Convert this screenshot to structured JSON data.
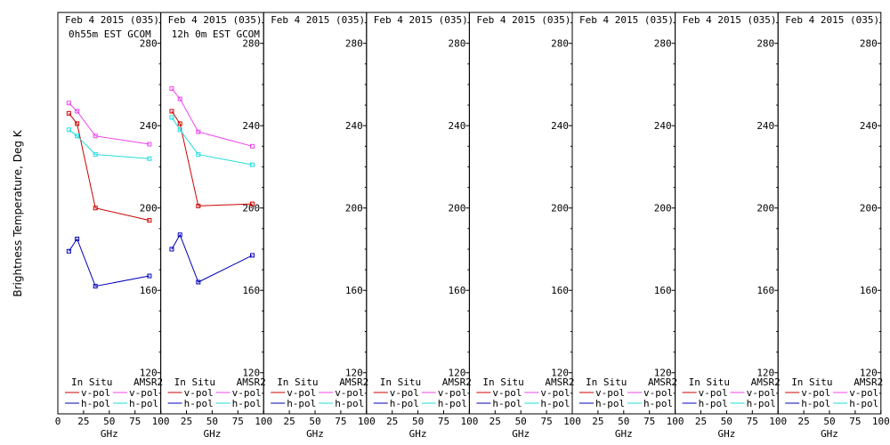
{
  "chart_data": {
    "type": "line",
    "ylabel": "Brightness Temperature, Deg K",
    "xlabel": "GHz",
    "xlim": [
      0,
      100
    ],
    "ylim": [
      100,
      295
    ],
    "xticks": [
      0,
      25,
      50,
      75,
      100
    ],
    "yticks": [
      120,
      160,
      200,
      240,
      280
    ],
    "legend": {
      "insitu_header": "In Situ",
      "amsr2_header": "AMSR2",
      "entries": [
        "v-pol",
        "h-pol",
        "v-pol",
        "h-pol"
      ]
    },
    "colors": {
      "insitu_v": "#cc0000",
      "insitu_h": "#0000bb",
      "amsr2_v": "#ee44ee",
      "amsr2_h": "#22dddd"
    },
    "panels": [
      {
        "title": "Feb 4 2015 (035)",
        "subtitle": "0h55m EST GCOM",
        "series": [
          {
            "name": "In Situ v-pol",
            "x": [
              10.7,
              18.7,
              36.5,
              89
            ],
            "y": [
              246,
              241,
              200,
              194
            ]
          },
          {
            "name": "In Situ h-pol",
            "x": [
              10.7,
              18.7,
              36.5,
              89
            ],
            "y": [
              179,
              185,
              162,
              167
            ]
          },
          {
            "name": "AMSR2 v-pol",
            "x": [
              10.7,
              18.7,
              36.5,
              89
            ],
            "y": [
              251,
              247,
              235,
              231
            ]
          },
          {
            "name": "AMSR2 h-pol",
            "x": [
              10.7,
              18.7,
              36.5,
              89
            ],
            "y": [
              238,
              235,
              226,
              224
            ]
          }
        ]
      },
      {
        "title": "Feb 4 2015 (035)",
        "subtitle": "12h 0m EST GCOM",
        "series": [
          {
            "name": "In Situ v-pol",
            "x": [
              10.7,
              18.7,
              36.5,
              89
            ],
            "y": [
              247,
              241,
              201,
              202
            ]
          },
          {
            "name": "In Situ h-pol",
            "x": [
              10.7,
              18.7,
              36.5,
              89
            ],
            "y": [
              180,
              187,
              164,
              177
            ]
          },
          {
            "name": "AMSR2 v-pol",
            "x": [
              10.7,
              18.7,
              36.5,
              89
            ],
            "y": [
              258,
              253,
              237,
              230
            ]
          },
          {
            "name": "AMSR2 h-pol",
            "x": [
              10.7,
              18.7,
              36.5,
              89
            ],
            "y": [
              244,
              238,
              226,
              221
            ]
          }
        ]
      },
      {
        "title": "Feb 4 2015 (035)",
        "subtitle": "",
        "series": []
      },
      {
        "title": "Feb 4 2015 (035)",
        "subtitle": "",
        "series": []
      },
      {
        "title": "Feb 4 2015 (035)",
        "subtitle": "",
        "series": []
      },
      {
        "title": "Feb 4 2015 (035)",
        "subtitle": "",
        "series": []
      },
      {
        "title": "Feb 4 2015 (035)",
        "subtitle": "",
        "series": []
      },
      {
        "title": "Feb 4 2015 (035)",
        "subtitle": "",
        "series": []
      }
    ]
  }
}
